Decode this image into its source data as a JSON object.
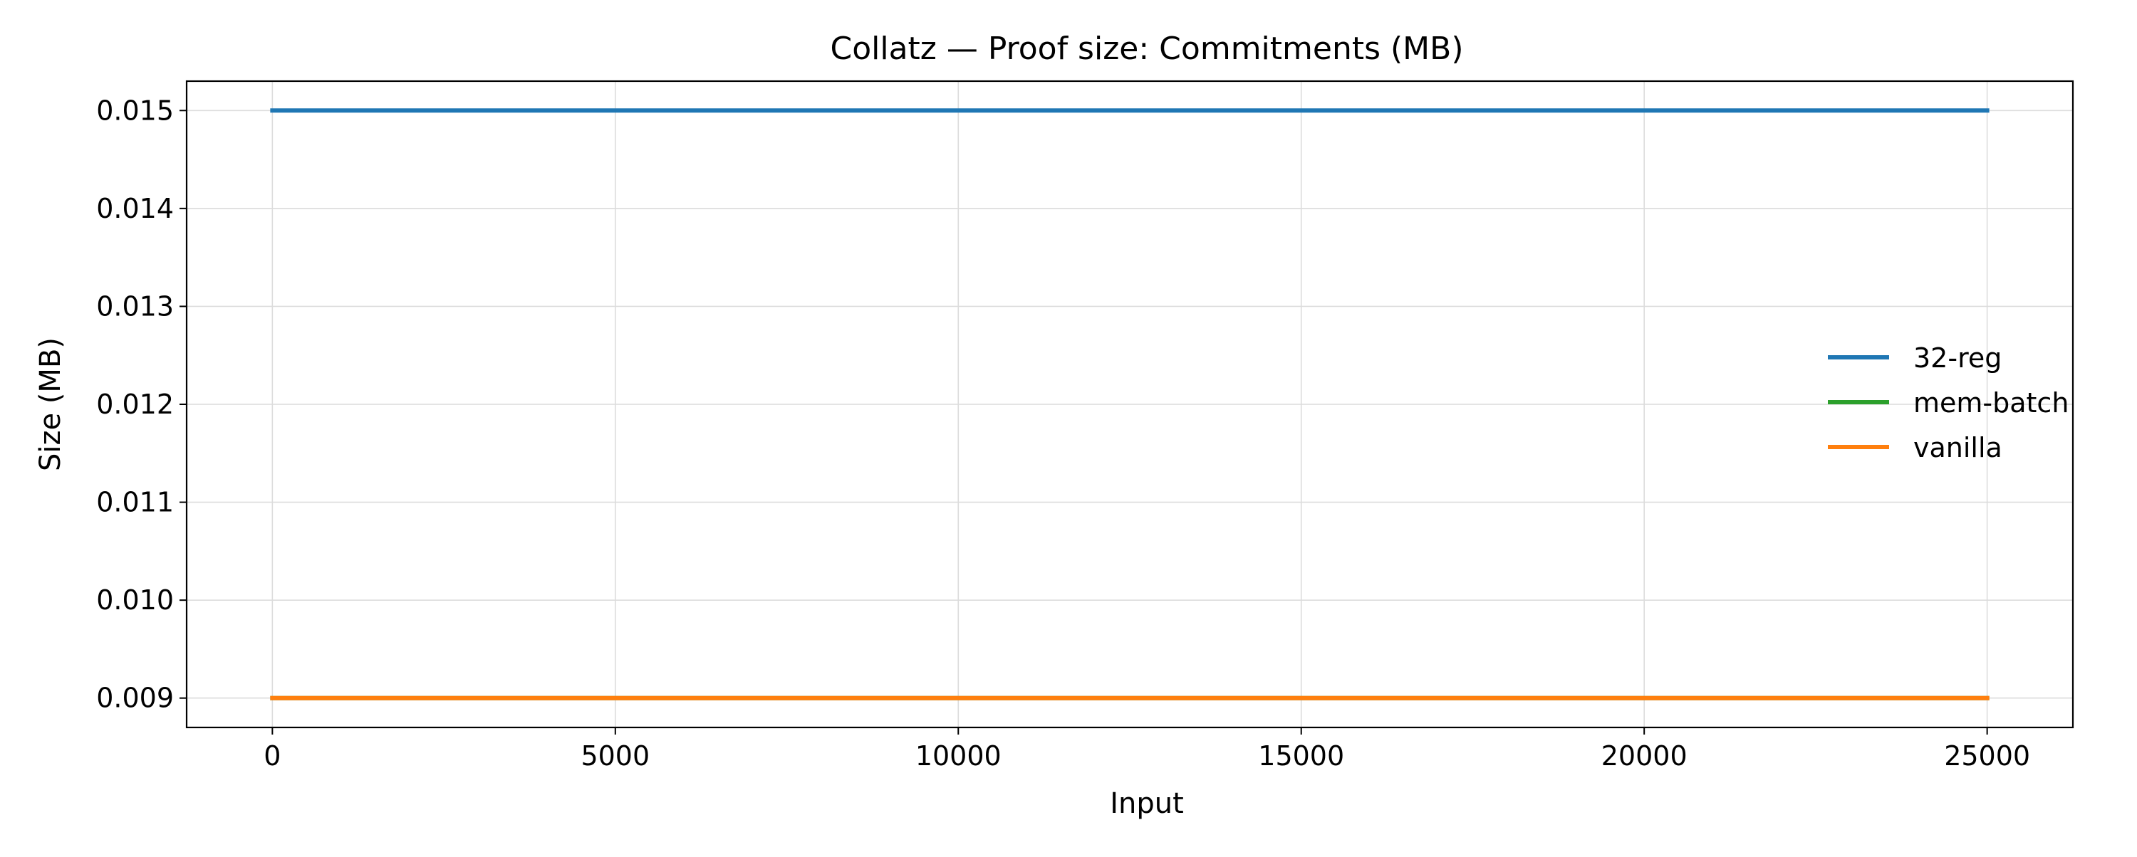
{
  "chart_data": {
    "type": "line",
    "title": "Collatz — Proof size: Commitments (MB)",
    "xlabel": "Input",
    "ylabel": "Size (MB)",
    "xlim": [
      -1250,
      26250
    ],
    "ylim": [
      0.0087,
      0.0153
    ],
    "xticks": [
      0,
      5000,
      10000,
      15000,
      20000,
      25000
    ],
    "xtick_labels": [
      "0",
      "5000",
      "10000",
      "15000",
      "20000",
      "25000"
    ],
    "yticks": [
      0.009,
      0.01,
      0.011,
      0.012,
      0.013,
      0.014,
      0.015
    ],
    "ytick_labels": [
      "0.009",
      "0.010",
      "0.011",
      "0.012",
      "0.013",
      "0.014",
      "0.015"
    ],
    "grid": true,
    "legend_position": "center-right",
    "series": [
      {
        "name": "32-reg",
        "color": "#1f77b4",
        "x": [
          0,
          25000
        ],
        "y": [
          0.015,
          0.015
        ]
      },
      {
        "name": "mem-batch",
        "color": "#2ca02c",
        "x": [
          0,
          25000
        ],
        "y": [
          0.009,
          0.009
        ]
      },
      {
        "name": "vanilla",
        "color": "#ff7f0e",
        "x": [
          0,
          25000
        ],
        "y": [
          0.009,
          0.009
        ]
      }
    ]
  }
}
